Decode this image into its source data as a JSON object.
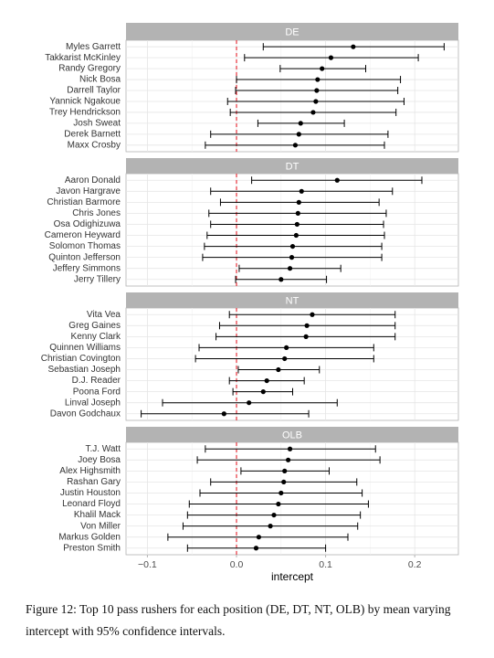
{
  "chart_data": [
    {
      "type": "errorbar",
      "title": "DE",
      "categories": [
        "Myles Garrett",
        "Takkarist McKinley",
        "Randy Gregory",
        "Nick Bosa",
        "Darrell Taylor",
        "Yannick Ngakoue",
        "Trey Hendrickson",
        "Josh Sweat",
        "Derek Barnett",
        "Maxx Crosby"
      ],
      "values": [
        0.131,
        0.106,
        0.096,
        0.091,
        0.09,
        0.089,
        0.086,
        0.072,
        0.07,
        0.066
      ],
      "lower": [
        0.03,
        0.009,
        0.049,
        0.0,
        -0.001,
        -0.01,
        -0.007,
        0.024,
        -0.029,
        -0.035
      ],
      "upper": [
        0.233,
        0.204,
        0.145,
        0.184,
        0.181,
        0.188,
        0.179,
        0.121,
        0.17,
        0.166
      ],
      "xlim": [
        -0.124,
        0.249
      ],
      "xticks": [
        -0.1,
        0,
        0.1,
        0.2
      ],
      "reference_line": 0,
      "grid": true
    },
    {
      "type": "errorbar",
      "title": "DT",
      "categories": [
        "Aaron Donald",
        "Javon Hargrave",
        "Christian Barmore",
        "Chris Jones",
        "Osa Odighizuwa",
        "Cameron Heyward",
        "Solomon Thomas",
        "Quinton Jefferson",
        "Jeffery Simmons",
        "Jerry Tillery"
      ],
      "values": [
        0.113,
        0.073,
        0.07,
        0.069,
        0.068,
        0.067,
        0.063,
        0.062,
        0.06,
        0.05
      ],
      "lower": [
        0.017,
        -0.029,
        -0.018,
        -0.031,
        -0.029,
        -0.033,
        -0.036,
        -0.038,
        0.003,
        -0.001
      ],
      "upper": [
        0.208,
        0.175,
        0.16,
        0.168,
        0.165,
        0.166,
        0.163,
        0.163,
        0.117,
        0.101
      ],
      "xlim": [
        -0.124,
        0.249
      ],
      "xticks": [
        -0.1,
        0,
        0.1,
        0.2
      ],
      "reference_line": 0,
      "grid": true
    },
    {
      "type": "errorbar",
      "title": "NT",
      "categories": [
        "Vita Vea",
        "Greg Gaines",
        "Kenny Clark",
        "Quinnen Williams",
        "Christian Covington",
        "Sebastian Joseph",
        "D.J. Reader",
        "Poona Ford",
        "Linval Joseph",
        "Davon Godchaux"
      ],
      "values": [
        0.085,
        0.079,
        0.078,
        0.056,
        0.054,
        0.047,
        0.034,
        0.03,
        0.014,
        -0.014
      ],
      "lower": [
        -0.008,
        -0.019,
        -0.023,
        -0.042,
        -0.046,
        0.002,
        -0.008,
        -0.004,
        -0.083,
        -0.107
      ],
      "upper": [
        0.178,
        0.178,
        0.178,
        0.154,
        0.154,
        0.093,
        0.076,
        0.063,
        0.113,
        0.081
      ],
      "xlim": [
        -0.124,
        0.249
      ],
      "xticks": [
        -0.1,
        0,
        0.1,
        0.2
      ],
      "reference_line": 0,
      "grid": true
    },
    {
      "type": "errorbar",
      "title": "OLB",
      "categories": [
        "T.J. Watt",
        "Joey Bosa",
        "Alex Highsmith",
        "Rashan Gary",
        "Justin Houston",
        "Leonard Floyd",
        "Khalil Mack",
        "Von Miller",
        "Markus Golden",
        "Preston Smith"
      ],
      "values": [
        0.06,
        0.058,
        0.054,
        0.053,
        0.05,
        0.047,
        0.042,
        0.038,
        0.025,
        0.022
      ],
      "lower": [
        -0.035,
        -0.044,
        0.005,
        -0.029,
        -0.041,
        -0.053,
        -0.055,
        -0.06,
        -0.077,
        -0.055
      ],
      "upper": [
        0.156,
        0.161,
        0.104,
        0.135,
        0.141,
        0.148,
        0.139,
        0.136,
        0.125,
        0.1
      ],
      "xlim": [
        -0.124,
        0.249
      ],
      "xticks": [
        {
          "value": -0.1,
          "label": "−0.1"
        },
        {
          "value": 0,
          "label": "0.0"
        },
        0.1,
        0.2
      ],
      "xlabel": "intercept",
      "reference_line": 0,
      "grid": true
    }
  ],
  "caption": "Figure 12: Top 10 pass rushers for each position (DE, DT, NT, OLB) by mean varying intercept with 95% confidence intervals."
}
